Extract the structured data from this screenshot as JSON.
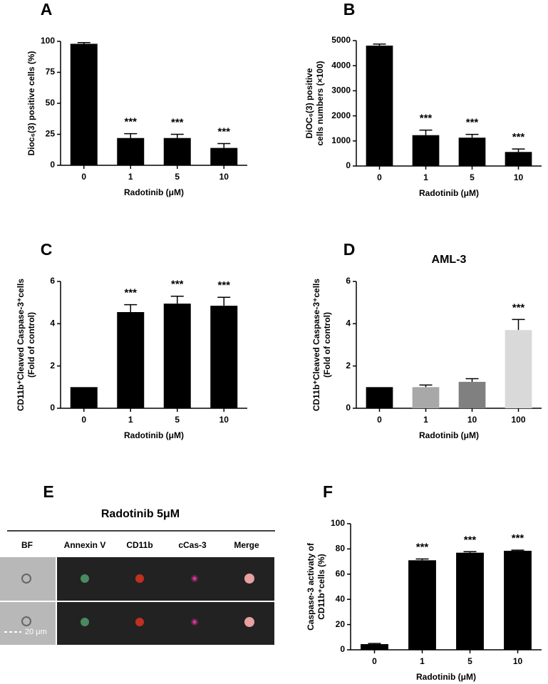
{
  "chart_data": [
    {
      "type": "bar",
      "panel": "A",
      "ylabel": [
        "Dioc₆(3) positive cells (%)"
      ],
      "xlabel": "Radotinib (μM)",
      "categories": [
        "0",
        "1",
        "5",
        "10"
      ],
      "values": [
        98,
        22,
        22,
        14
      ],
      "errors": [
        1,
        3.5,
        3,
        3.5
      ],
      "annotations": [
        null,
        "***",
        "***",
        "***"
      ],
      "color": "#000000",
      "ylim": [
        0,
        100
      ],
      "yticks": [
        0,
        25,
        50,
        75,
        100
      ]
    },
    {
      "type": "bar",
      "panel": "B",
      "ylabel": [
        "DiOC₆(3) positive",
        "cells numbers (×100)"
      ],
      "xlabel": "Radotinib (μM)",
      "categories": [
        "0",
        "1",
        "5",
        "10"
      ],
      "values": [
        4800,
        1230,
        1130,
        560
      ],
      "errors": [
        60,
        200,
        130,
        120
      ],
      "annotations": [
        null,
        "***",
        "***",
        "***"
      ],
      "color": "#000000",
      "ylim": [
        0,
        5000
      ],
      "yticks": [
        0,
        1000,
        2000,
        3000,
        4000,
        5000
      ]
    },
    {
      "type": "bar",
      "panel": "C",
      "ylabel": [
        "CD11b⁺Cleaved Caspase-3⁺cells",
        "(Fold of control)"
      ],
      "xlabel": "Radotinib (μM)",
      "categories": [
        "0",
        "1",
        "5",
        "10"
      ],
      "values": [
        1,
        4.55,
        4.95,
        4.85
      ],
      "errors": [
        0,
        0.35,
        0.35,
        0.4
      ],
      "annotations": [
        null,
        "***",
        "***",
        "***"
      ],
      "color": "#000000",
      "ylim": [
        0,
        6
      ],
      "yticks": [
        0,
        2,
        4,
        6
      ]
    },
    {
      "type": "bar",
      "panel": "D",
      "title": "AML-3",
      "ylabel": [
        "CD11b⁺Cleaved Caspase-3⁺cells",
        "(Fold of control)"
      ],
      "xlabel": "Radotinib (μM)",
      "categories": [
        "0",
        "1",
        "10",
        "100"
      ],
      "values": [
        1,
        1.0,
        1.25,
        3.7
      ],
      "errors": [
        0,
        0.1,
        0.15,
        0.5
      ],
      "annotations": [
        null,
        null,
        null,
        "***"
      ],
      "colors": [
        "#000000",
        "#a8a8a8",
        "#808080",
        "#d9d9d9"
      ],
      "ylim": [
        0,
        6
      ],
      "yticks": [
        0,
        2,
        4,
        6
      ]
    },
    {
      "type": "bar",
      "panel": "F",
      "ylabel": [
        "Caspase-3 activaty of",
        "CD11b⁺cells (%)"
      ],
      "xlabel": "Radotinib (μM)",
      "categories": [
        "0",
        "1",
        "5",
        "10"
      ],
      "values": [
        4.5,
        71,
        77,
        78.5
      ],
      "errors": [
        0.5,
        1,
        0.8,
        0.5
      ],
      "annotations": [
        null,
        "***",
        "***",
        "***"
      ],
      "color": "#000000",
      "ylim": [
        0,
        100
      ],
      "yticks": [
        0,
        20,
        40,
        60,
        80,
        100
      ]
    }
  ],
  "panel_e": {
    "panel": "E",
    "title": "Radotinib 5μM",
    "columns": [
      "BF",
      "Annexin V",
      "CD11b",
      "cCas-3",
      "Merge"
    ],
    "scale_label": "20 μm"
  }
}
